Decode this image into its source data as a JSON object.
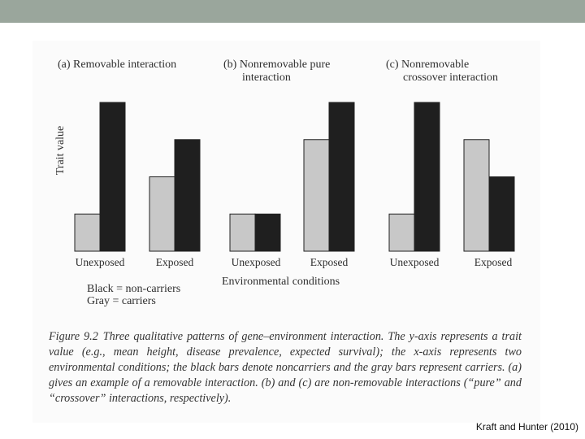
{
  "citation": "Kraft and Hunter (2010)",
  "figure": {
    "number": "Figure 9.2",
    "caption": "Three qualitative patterns of gene–environment interaction. The y-axis represents a trait value (e.g., mean height, disease prevalence, expected survival); the x-axis represents two environmental conditions; the black bars denote noncarriers and the gray bars represent carriers. (a) gives an example of a removable interaction. (b) and (c) are non-removable interactions (“pure” and “crossover” interactions, respectively).",
    "ylabel": "Trait value",
    "xlabel": "Environmental conditions",
    "legend": [
      "Black = non-carriers",
      "Gray = carriers"
    ]
  },
  "colors": {
    "black_bar": "#1f1f1f",
    "gray_bar": "#c8c8c8",
    "outline": "#222222",
    "top_bar": "#9aa69c"
  },
  "chart_data": [
    {
      "type": "bar",
      "title_line1": "(a) Removable interaction",
      "title_line2": "",
      "categories": [
        "Unexposed",
        "Exposed"
      ],
      "series": [
        {
          "name": "Gray = carriers",
          "values": [
            1.0,
            2.0
          ]
        },
        {
          "name": "Black = non-carriers",
          "values": [
            4.0,
            3.0
          ]
        }
      ],
      "ylim": [
        0,
        4
      ]
    },
    {
      "type": "bar",
      "title_line1": "(b) Nonremovable pure",
      "title_line2": "interaction",
      "categories": [
        "Unexposed",
        "Exposed"
      ],
      "series": [
        {
          "name": "Gray = carriers",
          "values": [
            1.0,
            3.0
          ]
        },
        {
          "name": "Black = non-carriers",
          "values": [
            1.0,
            4.0
          ]
        }
      ],
      "ylim": [
        0,
        4
      ]
    },
    {
      "type": "bar",
      "title_line1": "(c) Nonremovable",
      "title_line2": "crossover interaction",
      "categories": [
        "Unexposed",
        "Exposed"
      ],
      "series": [
        {
          "name": "Gray = carriers",
          "values": [
            1.0,
            3.0
          ]
        },
        {
          "name": "Black = non-carriers",
          "values": [
            4.0,
            2.0
          ]
        }
      ],
      "ylim": [
        0,
        4
      ]
    }
  ]
}
